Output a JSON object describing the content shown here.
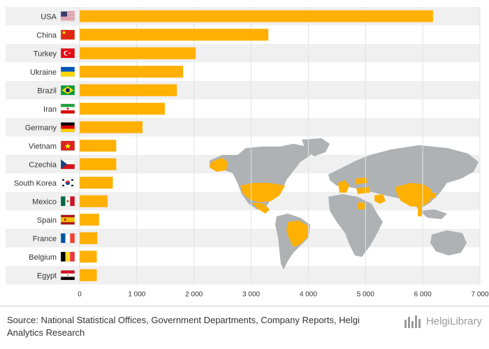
{
  "chart_data": {
    "type": "bar",
    "orientation": "horizontal",
    "categories": [
      "USA",
      "China",
      "Turkey",
      "Ukraine",
      "Brazil",
      "Iran",
      "Germany",
      "Vietnam",
      "Czechia",
      "South Korea",
      "Mexico",
      "Spain",
      "France",
      "Belgium",
      "Egypt"
    ],
    "values": [
      6180,
      3300,
      2030,
      1810,
      1700,
      1490,
      1100,
      640,
      640,
      580,
      490,
      340,
      310,
      300,
      300
    ],
    "xlim": [
      0,
      7000
    ],
    "xticks": [
      0,
      1000,
      2000,
      3000,
      4000,
      5000,
      6000,
      7000
    ],
    "xtick_labels": [
      "0",
      "1 000",
      "2 000",
      "3 000",
      "4 000",
      "5 000",
      "6 000",
      "7 000"
    ],
    "bar_color": "#FFB000",
    "stripe_color": "#F0F0F0",
    "map_land_color": "#AEB2B5",
    "grid": true,
    "legend": "none"
  },
  "footer": {
    "source_prefix": "Source:",
    "source_text": "National Statistical Offices, Government Departments, Company Reports, Helgi Analytics Research",
    "logo_text": "HelgiLibrary"
  },
  "icons": {
    "flags": [
      "us-flag-icon",
      "china-flag-icon",
      "turkey-flag-icon",
      "ukraine-flag-icon",
      "brazil-flag-icon",
      "iran-flag-icon",
      "germany-flag-icon",
      "vietnam-flag-icon",
      "czechia-flag-icon",
      "south-korea-flag-icon",
      "mexico-flag-icon",
      "spain-flag-icon",
      "france-flag-icon",
      "belgium-flag-icon",
      "egypt-flag-icon"
    ],
    "logo": "helgi-library-logo-icon"
  }
}
